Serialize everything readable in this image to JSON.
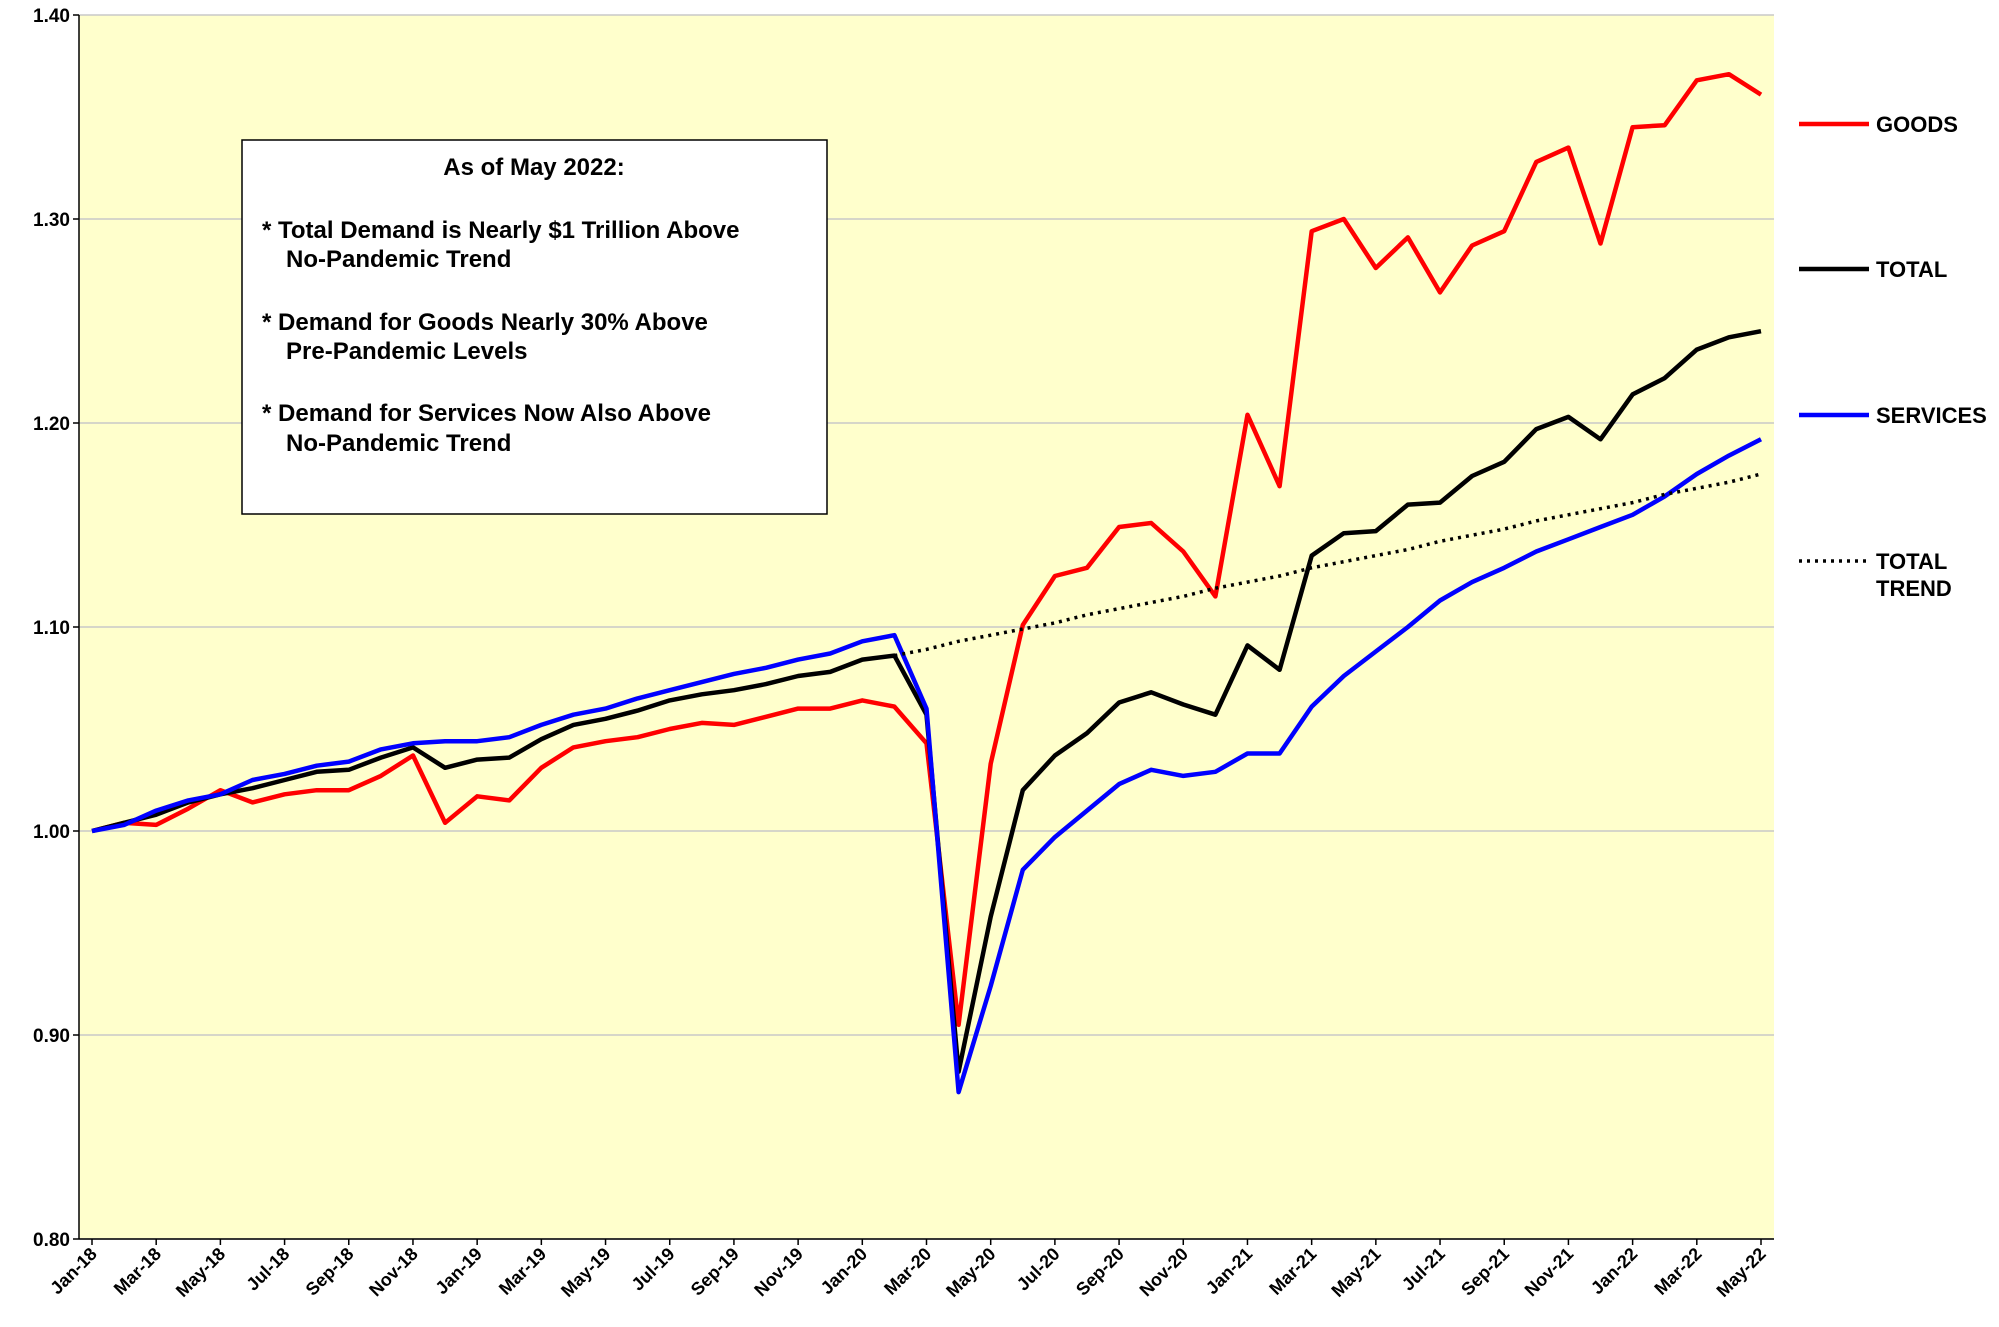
{
  "chart_data": {
    "type": "line",
    "categories": [
      "Jan-18",
      null,
      "Mar-18",
      null,
      "May-18",
      null,
      "Jul-18",
      null,
      "Sep-18",
      null,
      "Nov-18",
      null,
      "Jan-19",
      null,
      "Mar-19",
      null,
      "May-19",
      null,
      "Jul-19",
      null,
      "Sep-19",
      null,
      "Nov-19",
      null,
      "Jan-20",
      null,
      "Mar-20",
      null,
      "May-20",
      null,
      "Jul-20",
      null,
      "Sep-20",
      null,
      "Nov-20",
      null,
      "Jan-21",
      null,
      "Mar-21",
      null,
      "May-21",
      null,
      "Jul-21",
      null,
      "Sep-21",
      null,
      "Nov-21",
      null,
      "Jan-22",
      null,
      "Mar-22",
      null,
      "May-22"
    ],
    "series": [
      {
        "name": "GOODS",
        "color": "#ff0000",
        "style": "solid",
        "values": [
          1.0,
          1.004,
          1.003,
          1.011,
          1.02,
          1.014,
          1.018,
          1.02,
          1.02,
          1.027,
          1.037,
          1.004,
          1.017,
          1.015,
          1.031,
          1.041,
          1.044,
          1.046,
          1.05,
          1.053,
          1.052,
          1.056,
          1.06,
          1.06,
          1.064,
          1.061,
          1.043,
          0.905,
          1.033,
          1.101,
          1.125,
          1.129,
          1.149,
          1.151,
          1.137,
          1.115,
          1.204,
          1.169,
          1.294,
          1.3,
          1.276,
          1.291,
          1.264,
          1.287,
          1.294,
          1.328,
          1.335,
          1.288,
          1.345,
          1.346,
          1.368,
          1.371,
          1.361
        ]
      },
      {
        "name": "TOTAL",
        "color": "#000000",
        "style": "solid",
        "values": [
          1.0,
          1.004,
          1.008,
          1.014,
          1.018,
          1.021,
          1.025,
          1.029,
          1.03,
          1.036,
          1.041,
          1.031,
          1.035,
          1.036,
          1.045,
          1.052,
          1.055,
          1.059,
          1.064,
          1.067,
          1.069,
          1.072,
          1.076,
          1.078,
          1.084,
          1.086,
          1.057,
          0.882,
          0.958,
          1.02,
          1.037,
          1.048,
          1.063,
          1.068,
          1.062,
          1.057,
          1.091,
          1.079,
          1.135,
          1.146,
          1.147,
          1.16,
          1.161,
          1.174,
          1.181,
          1.197,
          1.203,
          1.192,
          1.214,
          1.222,
          1.236,
          1.242,
          1.245
        ]
      },
      {
        "name": "SERVICES",
        "color": "#0000ff",
        "style": "solid",
        "values": [
          1.0,
          1.003,
          1.01,
          1.015,
          1.018,
          1.025,
          1.028,
          1.032,
          1.034,
          1.04,
          1.043,
          1.044,
          1.044,
          1.046,
          1.052,
          1.057,
          1.06,
          1.065,
          1.069,
          1.073,
          1.077,
          1.08,
          1.084,
          1.087,
          1.093,
          1.096,
          1.06,
          0.872,
          0.924,
          0.981,
          0.997,
          1.01,
          1.023,
          1.03,
          1.027,
          1.029,
          1.038,
          1.038,
          1.061,
          1.076,
          1.088,
          1.1,
          1.113,
          1.122,
          1.129,
          1.137,
          1.143,
          1.149,
          1.155,
          1.164,
          1.175,
          1.184,
          1.192
        ]
      },
      {
        "name": "TOTAL TREND",
        "color": "#000000",
        "style": "dotted",
        "values": [
          null,
          null,
          null,
          null,
          null,
          null,
          null,
          null,
          null,
          null,
          null,
          null,
          null,
          null,
          null,
          null,
          null,
          null,
          null,
          null,
          null,
          null,
          null,
          null,
          null,
          1.086,
          1.089,
          1.093,
          1.096,
          1.099,
          1.102,
          1.106,
          1.109,
          1.112,
          1.115,
          1.119,
          1.122,
          1.125,
          1.129,
          1.132,
          1.135,
          1.138,
          1.142,
          1.145,
          1.148,
          1.152,
          1.155,
          1.158,
          1.161,
          1.165,
          1.168,
          1.171,
          1.175
        ]
      }
    ],
    "ylim": [
      0.8,
      1.4
    ],
    "yticks": [
      {
        "value": 0.8,
        "label": "0.80"
      },
      {
        "value": 0.9,
        "label": "0.90"
      },
      {
        "value": 1.0,
        "label": "1.00"
      },
      {
        "value": 1.1,
        "label": "1.10"
      },
      {
        "value": 1.2,
        "label": "1.20"
      },
      {
        "value": 1.3,
        "label": "1.30"
      },
      {
        "value": 1.4,
        "label": "1.40"
      }
    ],
    "grid": true,
    "legend": "right",
    "annotation": {
      "title": "As of May 2022:",
      "lines": [
        "* Total Demand is Nearly $1 Trillion Above",
        "No-Pandemic Trend",
        "* Demand for Goods Nearly 30% Above",
        "Pre-Pandemic Levels",
        "* Demand for Services Now Also Above",
        "No-Pandemic Trend"
      ]
    }
  }
}
